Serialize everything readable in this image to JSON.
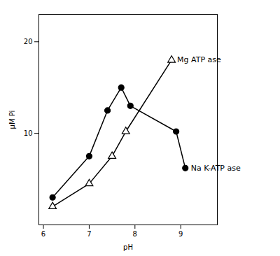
{
  "chart_data": {
    "type": "line",
    "xlabel": "pH",
    "ylabel": "μM Pi",
    "series": [
      {
        "name": "Mg ATP ase",
        "color": "#000000",
        "marker": "triangle-open",
        "x": [
          6.2,
          7.0,
          7.5,
          7.8,
          8.8
        ],
        "values": [
          2.0,
          4.5,
          7.5,
          10.2,
          18.0
        ]
      },
      {
        "name": "Na K-ATP ase",
        "color": "#000000",
        "marker": "circle",
        "x": [
          6.2,
          7.0,
          7.4,
          7.7,
          7.9,
          8.9,
          9.1
        ],
        "values": [
          3.0,
          7.5,
          12.5,
          15.0,
          13.0,
          10.2,
          6.2
        ]
      }
    ],
    "xlim": [
      5.9,
      9.8
    ],
    "ylim": [
      0,
      23
    ],
    "xticks": [
      6,
      7,
      8,
      9
    ],
    "yticks": [
      10,
      20
    ],
    "grid": false
  }
}
